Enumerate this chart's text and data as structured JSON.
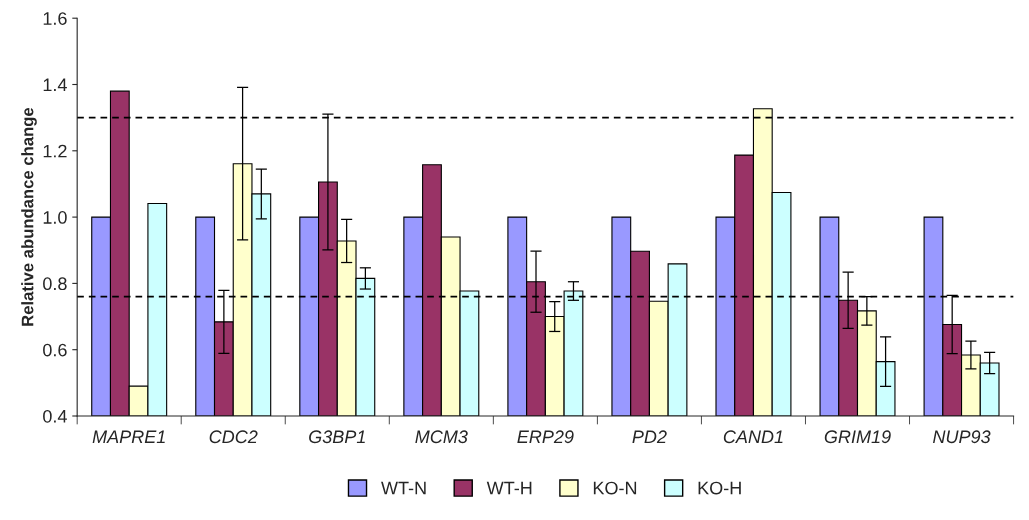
{
  "chart_data": {
    "type": "bar",
    "ylabel": "Relative abundance change",
    "categories": [
      "MAPRE1",
      "CDC2",
      "G3BP1",
      "MCM3",
      "ERP29",
      "PD2",
      "CAND1",
      "GRIM19",
      "NUP93"
    ],
    "series": [
      {
        "name": "WT-N",
        "color": "#9999ff",
        "values": [
          1.0,
          1.0,
          1.0,
          1.0,
          1.0,
          1.0,
          1.0,
          1.0,
          1.0
        ]
      },
      {
        "name": "WT-H",
        "color": "#993366",
        "values": [
          1.38,
          0.684,
          1.106,
          1.158,
          0.805,
          0.897,
          1.187,
          0.749,
          0.676
        ],
        "errors": [
          null,
          0.095,
          0.205,
          null,
          0.092,
          null,
          null,
          0.085,
          0.088
        ]
      },
      {
        "name": "KO-N",
        "color": "#ffffcc",
        "values": [
          0.49,
          1.161,
          0.928,
          0.94,
          0.7,
          0.746,
          1.327,
          0.717,
          0.584
        ],
        "errors": [
          null,
          0.23,
          0.065,
          null,
          0.045,
          null,
          null,
          0.043,
          0.042
        ]
      },
      {
        "name": "KO-H",
        "color": "#ccffff",
        "values": [
          1.041,
          1.07,
          0.815,
          0.777,
          0.777,
          0.859,
          1.074,
          0.564,
          0.56
        ],
        "errors": [
          null,
          0.075,
          0.032,
          null,
          0.028,
          null,
          null,
          0.075,
          0.032
        ]
      }
    ],
    "ylim": [
      0.4,
      1.6
    ],
    "yticks": [
      0.4,
      0.6,
      0.8,
      {
        "value": 1,
        "label": "1.0"
      },
      1.2,
      1.4,
      1.6
    ],
    "ref_lines": [
      {
        "axis": "y",
        "value": 1.3,
        "color": "#000000",
        "line_style": "dashed"
      },
      {
        "axis": "y",
        "value": 0.76,
        "color": "#000000",
        "line_style": "dashed"
      }
    ],
    "legend": "bottom",
    "grid": false
  }
}
